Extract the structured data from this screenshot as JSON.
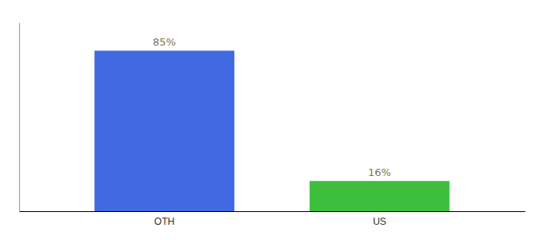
{
  "chart_data": {
    "type": "bar",
    "categories": [
      "OTH",
      "US"
    ],
    "values": [
      85,
      16
    ],
    "value_labels": [
      "85%",
      "16%"
    ],
    "colors": [
      "#4169e1",
      "#3dbe3d"
    ],
    "ylim": [
      0,
      100
    ],
    "data_labels": true,
    "tick_labels": "x"
  }
}
